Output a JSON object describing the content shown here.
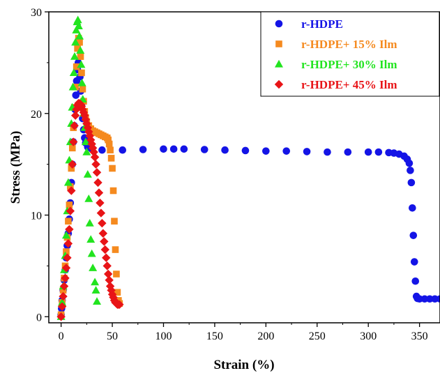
{
  "chart_data": {
    "type": "scatter",
    "title": "",
    "xlabel": "Strain (%)",
    "ylabel": "Stress (MPa)",
    "xlim": [
      -12,
      370
    ],
    "ylim": [
      -0.6,
      30
    ],
    "xticks": [
      "0",
      "50",
      "100",
      "150",
      "200",
      "250",
      "300",
      "350"
    ],
    "xtick_values": [
      0,
      50,
      100,
      150,
      200,
      250,
      300,
      350
    ],
    "yticks": [
      "0",
      "10",
      "20",
      "30"
    ],
    "ytick_values": [
      0,
      10,
      20,
      30
    ],
    "grid": false,
    "legend_position": "top-right",
    "series": [
      {
        "name": "r-HDPE",
        "color": "#1414e6",
        "marker": "circle",
        "points": [
          [
            0,
            0.2
          ],
          [
            0.5,
            0.8
          ],
          [
            1,
            1.6
          ],
          [
            2,
            2.6
          ],
          [
            3,
            3.6
          ],
          [
            4,
            4.6
          ],
          [
            5,
            5.8
          ],
          [
            6,
            7.0
          ],
          [
            7,
            8.2
          ],
          [
            8,
            9.6
          ],
          [
            9,
            11.2
          ],
          [
            10,
            13.2
          ],
          [
            11,
            15.0
          ],
          [
            12,
            17.2
          ],
          [
            12.8,
            18.8
          ],
          [
            13.6,
            20.4
          ],
          [
            14.4,
            21.8
          ],
          [
            15.2,
            23.2
          ],
          [
            16,
            24.3
          ],
          [
            16.8,
            25.0
          ],
          [
            17.6,
            24.8
          ],
          [
            18.4,
            23.6
          ],
          [
            19.2,
            22.2
          ],
          [
            20,
            20.8
          ],
          [
            21,
            19.5
          ],
          [
            22,
            18.4
          ],
          [
            23,
            17.6
          ],
          [
            24,
            17.1
          ],
          [
            26,
            16.7
          ],
          [
            30,
            16.5
          ],
          [
            40,
            16.4
          ],
          [
            60,
            16.4
          ],
          [
            80,
            16.45
          ],
          [
            100,
            16.5
          ],
          [
            110,
            16.5
          ],
          [
            120,
            16.5
          ],
          [
            140,
            16.45
          ],
          [
            160,
            16.4
          ],
          [
            180,
            16.35
          ],
          [
            200,
            16.3
          ],
          [
            220,
            16.3
          ],
          [
            240,
            16.25
          ],
          [
            260,
            16.2
          ],
          [
            280,
            16.2
          ],
          [
            300,
            16.2
          ],
          [
            310,
            16.2
          ],
          [
            320,
            16.15
          ],
          [
            325,
            16.1
          ],
          [
            330,
            16.0
          ],
          [
            335,
            15.8
          ],
          [
            338,
            15.5
          ],
          [
            340,
            15.1
          ],
          [
            341,
            14.4
          ],
          [
            342,
            13.2
          ],
          [
            343,
            10.7
          ],
          [
            344,
            8.0
          ],
          [
            345,
            5.4
          ],
          [
            346,
            3.5
          ],
          [
            347,
            2.0
          ],
          [
            348,
            1.8
          ],
          [
            350,
            1.75
          ],
          [
            355,
            1.75
          ],
          [
            360,
            1.75
          ],
          [
            365,
            1.75
          ],
          [
            370,
            1.75
          ]
        ]
      },
      {
        "name": "r-HDPE+ 15% Ilm",
        "color": "#f58a1f",
        "marker": "square",
        "points": [
          [
            0,
            0.2
          ],
          [
            1,
            1.4
          ],
          [
            2,
            2.6
          ],
          [
            3,
            3.8
          ],
          [
            4,
            5.0
          ],
          [
            5,
            6.4
          ],
          [
            6,
            7.8
          ],
          [
            7,
            9.4
          ],
          [
            8,
            11.0
          ],
          [
            9,
            12.8
          ],
          [
            10,
            14.6
          ],
          [
            11,
            16.6
          ],
          [
            12,
            18.6
          ],
          [
            13,
            20.6
          ],
          [
            14,
            22.6
          ],
          [
            15,
            24.6
          ],
          [
            16,
            26.4
          ],
          [
            17,
            27.4
          ],
          [
            18,
            27.0
          ],
          [
            19,
            25.6
          ],
          [
            20,
            24.0
          ],
          [
            21,
            22.4
          ],
          [
            22,
            21.2
          ],
          [
            23,
            20.2
          ],
          [
            24,
            19.6
          ],
          [
            25,
            19.2
          ],
          [
            27,
            18.8
          ],
          [
            29,
            18.5
          ],
          [
            31,
            18.3
          ],
          [
            33,
            18.2
          ],
          [
            35,
            18.1
          ],
          [
            37,
            18.0
          ],
          [
            39,
            17.9
          ],
          [
            41,
            17.8
          ],
          [
            43,
            17.7
          ],
          [
            45,
            17.6
          ],
          [
            46,
            17.4
          ],
          [
            47,
            17.0
          ],
          [
            48,
            16.4
          ],
          [
            49,
            15.6
          ],
          [
            50,
            14.6
          ],
          [
            51,
            12.4
          ],
          [
            52,
            9.4
          ],
          [
            53,
            6.6
          ],
          [
            54,
            4.2
          ],
          [
            55,
            2.4
          ],
          [
            56,
            1.6
          ],
          [
            57,
            1.3
          ]
        ]
      },
      {
        "name": "r-HDPE+ 30% Ilm",
        "color": "#22e41f",
        "marker": "triangle",
        "points": [
          [
            0,
            0
          ],
          [
            1,
            1.4
          ],
          [
            2,
            3.0
          ],
          [
            3,
            4.6
          ],
          [
            4,
            6.0
          ],
          [
            5,
            8.0
          ],
          [
            6,
            10.4
          ],
          [
            7,
            13.2
          ],
          [
            8,
            15.4
          ],
          [
            9,
            17.2
          ],
          [
            10,
            19.0
          ],
          [
            10.8,
            20.6
          ],
          [
            11.6,
            22.6
          ],
          [
            12.4,
            24.0
          ],
          [
            13.2,
            25.6
          ],
          [
            14,
            27.0
          ],
          [
            14.8,
            28.2
          ],
          [
            15.6,
            29.0
          ],
          [
            16.4,
            29.2
          ],
          [
            17.2,
            28.6
          ],
          [
            18,
            27.6
          ],
          [
            18.8,
            26.2
          ],
          [
            19.6,
            24.8
          ],
          [
            20.4,
            23.0
          ],
          [
            21.2,
            21.4
          ],
          [
            22,
            20.0
          ],
          [
            23,
            18.6
          ],
          [
            24,
            17.2
          ],
          [
            25,
            16.2
          ],
          [
            26,
            14.0
          ],
          [
            27,
            11.6
          ],
          [
            28,
            9.2
          ],
          [
            29,
            7.6
          ],
          [
            30,
            6.2
          ],
          [
            31,
            4.8
          ],
          [
            33,
            3.4
          ],
          [
            34,
            2.6
          ],
          [
            35,
            1.5
          ]
        ]
      },
      {
        "name": "r-HDPE+ 45% Ilm",
        "color": "#e81417",
        "marker": "diamond",
        "points": [
          [
            0,
            0
          ],
          [
            1,
            1.0
          ],
          [
            2,
            2.0
          ],
          [
            3,
            3.0
          ],
          [
            4,
            3.8
          ],
          [
            5,
            4.8
          ],
          [
            6,
            5.8
          ],
          [
            7,
            7.2
          ],
          [
            8,
            8.6
          ],
          [
            9,
            10.4
          ],
          [
            10,
            12.4
          ],
          [
            11,
            15.0
          ],
          [
            12,
            17.2
          ],
          [
            13,
            18.8
          ],
          [
            14,
            19.8
          ],
          [
            15,
            20.4
          ],
          [
            16,
            20.8
          ],
          [
            17,
            21.0
          ],
          [
            18,
            21.0
          ],
          [
            19,
            20.9
          ],
          [
            20,
            20.7
          ],
          [
            21,
            20.4
          ],
          [
            22,
            20.1
          ],
          [
            23,
            19.8
          ],
          [
            24,
            19.4
          ],
          [
            25,
            19.0
          ],
          [
            26,
            18.6
          ],
          [
            27,
            18.2
          ],
          [
            28,
            17.8
          ],
          [
            29,
            17.4
          ],
          [
            30,
            17.0
          ],
          [
            31,
            16.6
          ],
          [
            32,
            16.2
          ],
          [
            33,
            15.7
          ],
          [
            34,
            15.0
          ],
          [
            35,
            14.2
          ],
          [
            36,
            13.2
          ],
          [
            37,
            12.2
          ],
          [
            38,
            11.2
          ],
          [
            39,
            10.2
          ],
          [
            40,
            9.2
          ],
          [
            41,
            8.2
          ],
          [
            42,
            7.4
          ],
          [
            43,
            6.6
          ],
          [
            44,
            5.8
          ],
          [
            45,
            5.0
          ],
          [
            46,
            4.2
          ],
          [
            47,
            3.6
          ],
          [
            48,
            3.0
          ],
          [
            49,
            2.6
          ],
          [
            50,
            2.2
          ],
          [
            51,
            1.9
          ],
          [
            52,
            1.6
          ],
          [
            53,
            1.4
          ],
          [
            54,
            1.3
          ],
          [
            55,
            1.2
          ],
          [
            56,
            1.2
          ],
          [
            57,
            1.2
          ]
        ]
      }
    ]
  }
}
